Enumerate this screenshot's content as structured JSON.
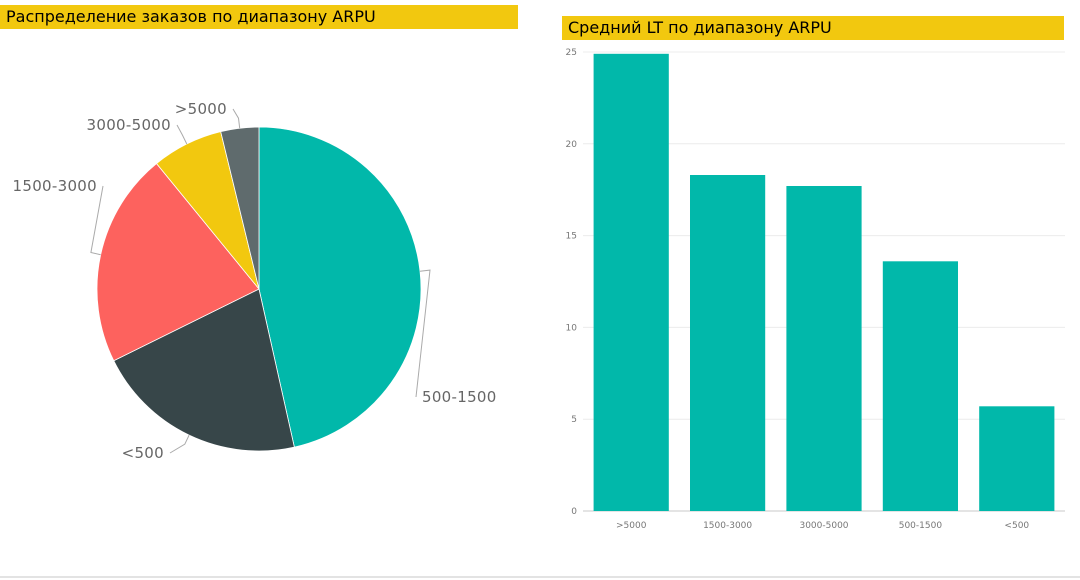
{
  "pie_panel": {
    "title": "Распределение заказов по диапазону ARPU"
  },
  "bar_panel": {
    "title": "Средний LT по диапазону ARPU"
  },
  "chart_data": [
    {
      "type": "pie",
      "title": "Распределение заказов по диапазону ARPU",
      "slices": [
        {
          "label": "500-1500",
          "value": 46.5,
          "color": "#01b8aa"
        },
        {
          "label": "<500",
          "value": 21.2,
          "color": "#374649"
        },
        {
          "label": "1500-3000",
          "value": 21.4,
          "color": "#fd625e"
        },
        {
          "label": "3000-5000",
          "value": 7.1,
          "color": "#f2c80f"
        },
        {
          "label": ">5000",
          "value": 3.8,
          "color": "#5f6b6d"
        }
      ],
      "start_angle": "12 o'clock",
      "direction": "clockwise",
      "legend": "none"
    },
    {
      "type": "bar",
      "title": "Средний LT по диапазону ARPU",
      "categories": [
        ">5000",
        "1500-3000",
        "3000-5000",
        "500-1500",
        "<500"
      ],
      "values": [
        24.9,
        18.3,
        17.7,
        13.6,
        5.7
      ],
      "color": "#01b8aa",
      "ylim": [
        0,
        25
      ],
      "yticks": [
        0,
        5,
        10,
        15,
        20,
        25
      ],
      "grid": true,
      "xlabel": "",
      "ylabel": ""
    }
  ]
}
